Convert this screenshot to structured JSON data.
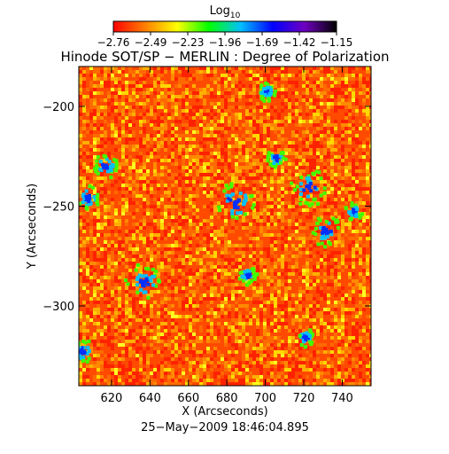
{
  "colorbar": {
    "label_base": "Log",
    "label_sub": "10",
    "ticks": [
      "−2.76",
      "−2.49",
      "−2.23",
      "−1.96",
      "−1.69",
      "−1.42",
      "−1.15"
    ],
    "colors": [
      "#ff0000",
      "#ff7f00",
      "#ffff00",
      "#00ff00",
      "#00c0ff",
      "#0000ff",
      "#7000c0",
      "#000000"
    ]
  },
  "chart_data": {
    "type": "heatmap",
    "title": "Hinode SOT/SP − MERLIN : Degree of Polarization",
    "xlabel": "X (Arcseconds)",
    "ylabel": "Y (Arcseconds)",
    "x_ticks": [
      620,
      640,
      660,
      680,
      700,
      720,
      740
    ],
    "y_ticks": [
      -200,
      -250,
      -300
    ],
    "xlim": [
      603,
      755
    ],
    "ylim": [
      -340,
      -180
    ],
    "color_range_log10": [
      -2.76,
      -1.15
    ],
    "dominant_value_log10": -2.6,
    "footer": "25−May−2009 18:46:04.895"
  }
}
